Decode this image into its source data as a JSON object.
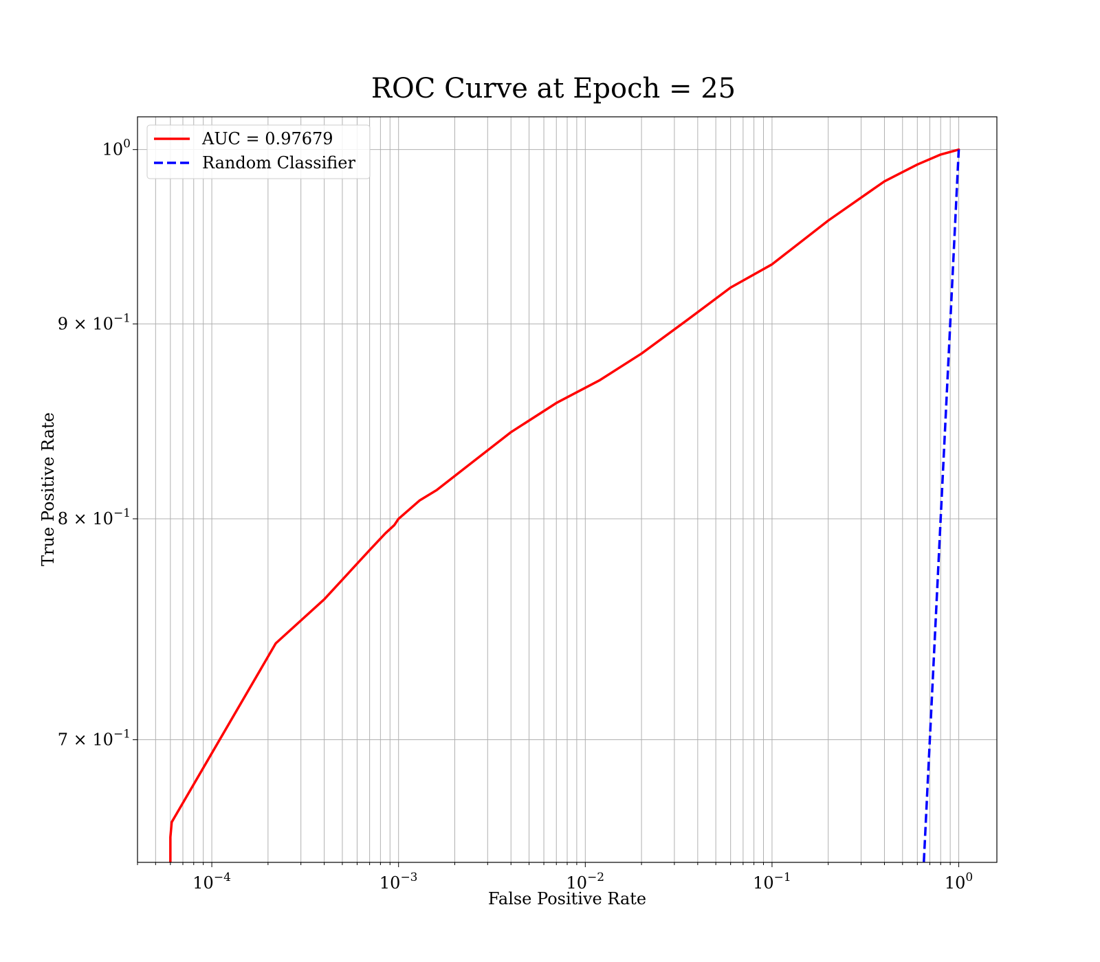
{
  "chart_data": {
    "type": "line",
    "title": "ROC Curve at Epoch = 25",
    "xlabel": "False Positive Rate",
    "ylabel": "True Positive Rate",
    "xscale": "log",
    "yscale": "log",
    "xlim": [
      4e-05,
      1.6
    ],
    "ylim": [
      0.65,
      1.02
    ],
    "grid": true,
    "grid_which": "both (x), major (y)",
    "legend_loc": "upper left",
    "x_ticks": [
      {
        "value": 0.0001,
        "base": "10",
        "exp": "−4"
      },
      {
        "value": 0.001,
        "base": "10",
        "exp": "−3"
      },
      {
        "value": 0.01,
        "base": "10",
        "exp": "−2"
      },
      {
        "value": 0.1,
        "base": "10",
        "exp": "−1"
      },
      {
        "value": 1,
        "base": "10",
        "exp": "0"
      }
    ],
    "y_ticks": [
      {
        "value": 0.7,
        "mant": "7 × ",
        "base": "10",
        "exp": "−1"
      },
      {
        "value": 0.8,
        "mant": "8 × ",
        "base": "10",
        "exp": "−1"
      },
      {
        "value": 0.9,
        "mant": "9 × ",
        "base": "10",
        "exp": "−1"
      },
      {
        "value": 1.0,
        "mant": "",
        "base": "10",
        "exp": "0"
      }
    ],
    "series": [
      {
        "name": "AUC = 0.97679",
        "color": "#ff0000",
        "style": "solid",
        "x": [
          6e-05,
          6e-05,
          6.1e-05,
          0.00022,
          0.0004,
          0.0007,
          0.00085,
          0.00095,
          0.001,
          0.0013,
          0.0016,
          0.0025,
          0.004,
          0.007,
          0.012,
          0.02,
          0.035,
          0.06,
          0.1,
          0.2,
          0.4,
          0.6,
          0.8,
          1.0
        ],
        "y": [
          0.648,
          0.66,
          0.666,
          0.742,
          0.762,
          0.785,
          0.793,
          0.797,
          0.8,
          0.809,
          0.814,
          0.828,
          0.843,
          0.858,
          0.87,
          0.884,
          0.902,
          0.92,
          0.933,
          0.958,
          0.981,
          0.991,
          0.997,
          1.0
        ]
      },
      {
        "name": "Random Classifier",
        "color": "#0000ff",
        "style": "dashed",
        "x": [
          0.64,
          0.7,
          0.8,
          0.9,
          1.0
        ],
        "y": [
          0.64,
          0.7,
          0.8,
          0.9,
          1.0
        ]
      }
    ]
  }
}
